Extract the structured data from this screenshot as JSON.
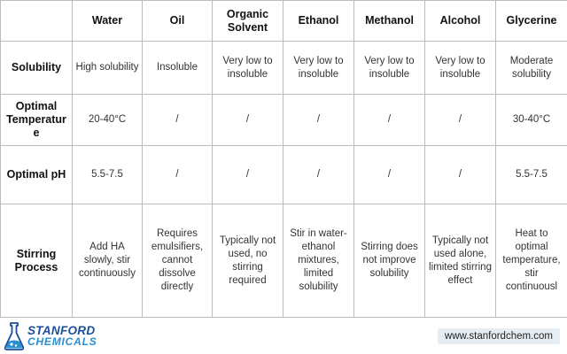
{
  "table": {
    "headers": [
      "",
      "Water",
      "Oil",
      "Organic Solvent",
      "Ethanol",
      "Methanol",
      "Alcohol",
      "Glycerine"
    ],
    "rows": [
      {
        "label": "Solubility",
        "cells": [
          "High solubility",
          "Insoluble",
          "Very low to insoluble",
          "Very low to insoluble",
          "Very low to insoluble",
          "Very low to insoluble",
          "Moderate solubility"
        ]
      },
      {
        "label": "Optimal Temperature",
        "cells": [
          "20-40°C",
          "/",
          "/",
          "/",
          "/",
          "/",
          "30-40°C"
        ]
      },
      {
        "label": "Optimal pH",
        "cells": [
          "5.5-7.5",
          "/",
          "/",
          "/",
          "/",
          "/",
          "5.5-7.5"
        ]
      },
      {
        "label": "Stirring Process",
        "cells": [
          "Add HA slowly, stir continuously",
          "Requires emulsifiers, cannot dissolve directly",
          "Typically not used, no stirring required",
          "Stir in water-ethanol mixtures, limited solubility",
          "Stirring does not improve solubility",
          "Typically not used alone, limited stirring effect",
          "Heat to optimal temperature, stir continuousl"
        ]
      }
    ]
  },
  "footer": {
    "logo_line1": "STANFORD",
    "logo_line2": "CHEMICALS",
    "website": "www.stanfordchem.com"
  },
  "colors": {
    "brand_dark": "#1a4f9c",
    "brand_light": "#2a8fd1",
    "border": "#bdbdbd"
  }
}
